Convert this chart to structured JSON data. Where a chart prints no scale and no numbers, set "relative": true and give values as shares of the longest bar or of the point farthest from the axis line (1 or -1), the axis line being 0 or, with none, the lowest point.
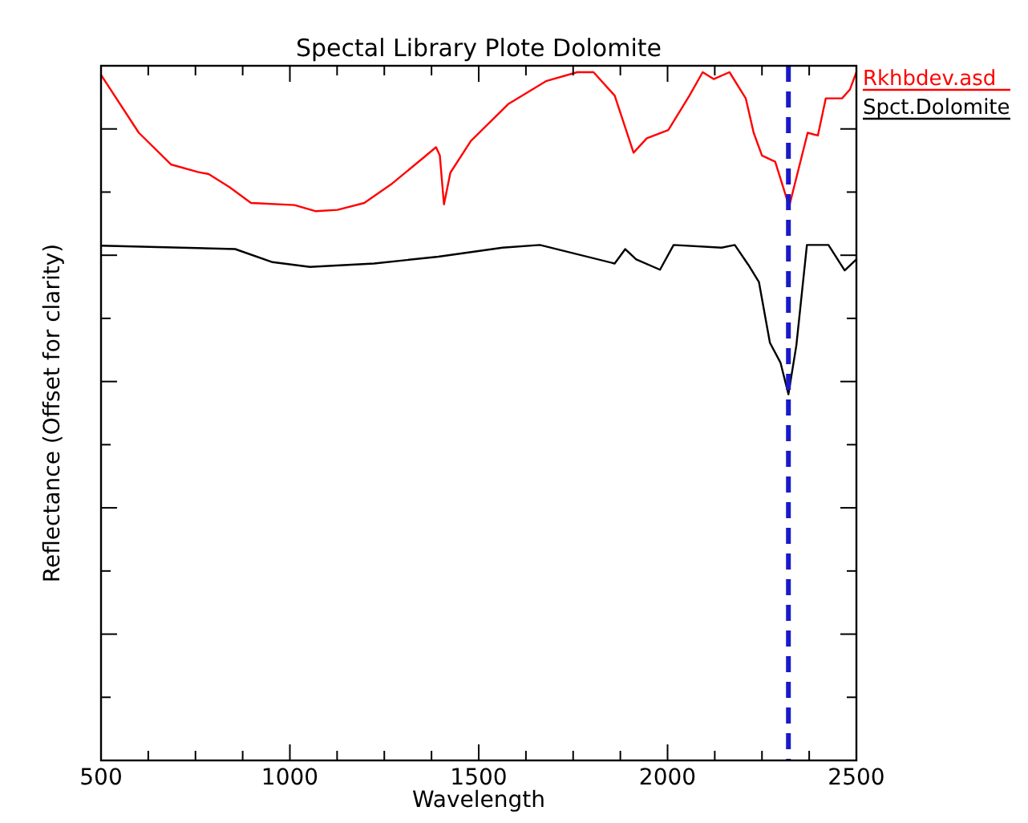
{
  "chart_data": {
    "type": "line",
    "title": "Spectal Library Plote Dolomite",
    "xlabel": "Wavelength",
    "ylabel": "Reflectance (Offset for clarity)",
    "relative": true,
    "xlim": [
      500,
      2500
    ],
    "xticks": [
      500,
      {
        "value": 625,
        "label": null
      },
      {
        "value": 750,
        "label": null
      },
      {
        "value": 875,
        "label": null
      },
      1000,
      {
        "value": 1125,
        "label": null
      },
      {
        "value": 1250,
        "label": null
      },
      {
        "value": 1375,
        "label": null
      },
      1500,
      {
        "value": 1625,
        "label": null
      },
      {
        "value": 1750,
        "label": null
      },
      {
        "value": 1875,
        "label": null
      },
      2000,
      {
        "value": 2125,
        "label": null
      },
      {
        "value": 2250,
        "label": null
      },
      {
        "value": 2375,
        "label": null
      },
      2500
    ],
    "legend": "top right",
    "grid": false,
    "line_style": "solid",
    "ref_lines": [
      {
        "axis": "x",
        "value": 2320,
        "color": "#1a1ac8",
        "line_style": "dashed"
      }
    ],
    "series": [
      {
        "name": "Rkhbdev.asd",
        "color": "#ff0000",
        "x": [
          500,
          600,
          685,
          756,
          785,
          840,
          897,
          1012,
          1069,
          1126,
          1197,
          1268,
          1352,
          1387,
          1397,
          1408,
          1425,
          1479,
          1579,
          1678,
          1761,
          1804,
          1860,
          1910,
          1945,
          2002,
          2058,
          2093,
          2122,
          2164,
          2207,
          2228,
          2250,
          2285,
          2322,
          2371,
          2398,
          2419,
          2462,
          2483,
          2500
        ],
        "values": [
          0.996,
          0.912,
          0.866,
          0.855,
          0.852,
          0.833,
          0.81,
          0.807,
          0.798,
          0.8,
          0.81,
          0.837,
          0.875,
          0.891,
          0.879,
          0.808,
          0.854,
          0.9,
          0.954,
          0.987,
          1,
          1,
          0.966,
          0.883,
          0.904,
          0.916,
          0.966,
          1,
          0.99,
          1,
          0.962,
          0.912,
          0.879,
          0.87,
          0.805,
          0.912,
          0.908,
          0.962,
          0.962,
          0.975,
          1
        ]
      },
      {
        "name": "Spct.Dolomite",
        "color": "#000000",
        "x": [
          500,
          855,
          954,
          1053,
          1223,
          1393,
          1563,
          1662,
          1860,
          1888,
          1917,
          1980,
          2016,
          2143,
          2178,
          2214,
          2242,
          2271,
          2299,
          2320,
          2341,
          2369,
          2426,
          2469,
          2500
        ],
        "values": [
          0.748,
          0.743,
          0.724,
          0.717,
          0.722,
          0.732,
          0.745,
          0.749,
          0.722,
          0.743,
          0.728,
          0.713,
          0.749,
          0.745,
          0.749,
          0.72,
          0.695,
          0.607,
          0.578,
          0.532,
          0.603,
          0.749,
          0.749,
          0.712,
          0.728
        ]
      }
    ]
  }
}
